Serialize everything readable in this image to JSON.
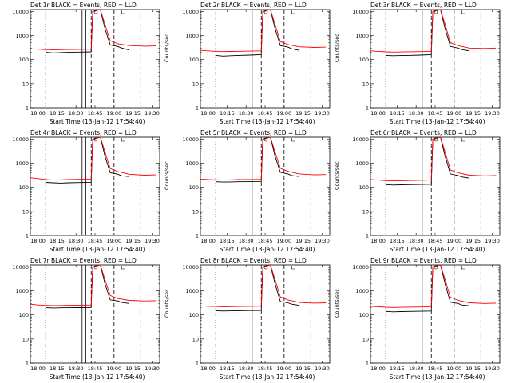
{
  "chart_data": [
    {
      "type": "line",
      "title": "Det 1r BLACK = Events, RED = LLD",
      "xlabel": "Start Time (13-Jan-12 17:54:40)",
      "ylabel": "Counts/sec",
      "x_ticks": [
        "18:00",
        "18:15",
        "18:30",
        "18:45",
        "19:00",
        "19:15",
        "19:30"
      ],
      "y_ticks": [
        "1",
        "10",
        "100",
        "1000",
        "10000"
      ],
      "ylim": [
        1,
        12000
      ],
      "xlim": [
        17.9,
        19.6
      ],
      "series": [
        {
          "name": "Events",
          "color": "#000000",
          "x": [
            18.1,
            18.2,
            18.3,
            18.4,
            18.55,
            18.7,
            18.72,
            18.82,
            18.88,
            18.95,
            19.05,
            19.1,
            19.2
          ],
          "y": [
            200,
            190,
            195,
            200,
            205,
            210,
            10000,
            12000,
            2000,
            400,
            350,
            300,
            250
          ]
        },
        {
          "name": "LLD",
          "color": "#ff0000",
          "x": [
            17.9,
            18.0,
            18.1,
            18.2,
            18.3,
            18.4,
            18.55,
            18.7,
            18.72,
            18.82,
            18.88,
            18.95,
            19.05,
            19.2,
            19.4,
            19.55
          ],
          "y": [
            280,
            270,
            260,
            255,
            258,
            262,
            265,
            270,
            10000,
            12000,
            3000,
            600,
            450,
            380,
            360,
            370
          ]
        }
      ]
    },
    {
      "type": "line",
      "title": "Det 2r BLACK = Events, RED = LLD",
      "xlabel": "Start Time (13-Jan-12 17:54:40)",
      "ylabel": "Counts/sec",
      "x_ticks": [
        "18:00",
        "18:15",
        "18:30",
        "18:45",
        "19:00",
        "19:15",
        "19:30"
      ],
      "y_ticks": [
        "1",
        "10",
        "100",
        "1000",
        "10000"
      ],
      "ylim": [
        1,
        12000
      ],
      "xlim": [
        17.9,
        19.6
      ],
      "series": [
        {
          "name": "Events",
          "color": "#000000",
          "x": [
            18.1,
            18.2,
            18.3,
            18.4,
            18.55,
            18.7,
            18.72,
            18.82,
            18.88,
            18.95,
            19.05,
            19.1,
            19.2
          ],
          "y": [
            150,
            140,
            145,
            150,
            155,
            160,
            10000,
            12000,
            2000,
            380,
            330,
            280,
            240
          ]
        },
        {
          "name": "LLD",
          "color": "#ff0000",
          "x": [
            17.9,
            18.0,
            18.1,
            18.2,
            18.3,
            18.4,
            18.55,
            18.7,
            18.72,
            18.82,
            18.88,
            18.95,
            19.05,
            19.2,
            19.4,
            19.55
          ],
          "y": [
            240,
            230,
            220,
            215,
            218,
            222,
            225,
            230,
            10000,
            12000,
            3000,
            560,
            420,
            340,
            320,
            330
          ]
        }
      ]
    },
    {
      "type": "line",
      "title": "Det 3r BLACK = Events, RED = LLD",
      "xlabel": "Start Time (13-Jan-12 17:54:40)",
      "ylabel": "Counts/sec",
      "x_ticks": [
        "18:00",
        "18:15",
        "18:30",
        "18:45",
        "19:00",
        "19:15",
        "19:30"
      ],
      "y_ticks": [
        "1",
        "10",
        "100",
        "1000",
        "10000"
      ],
      "ylim": [
        1,
        12000
      ],
      "xlim": [
        17.9,
        19.6
      ],
      "series": [
        {
          "name": "Events",
          "color": "#000000",
          "x": [
            18.1,
            18.2,
            18.3,
            18.4,
            18.55,
            18.7,
            18.72,
            18.82,
            18.88,
            18.95,
            19.05,
            19.1,
            19.2
          ],
          "y": [
            150,
            145,
            148,
            150,
            155,
            160,
            10000,
            12000,
            2000,
            350,
            300,
            260,
            230
          ]
        },
        {
          "name": "LLD",
          "color": "#ff0000",
          "x": [
            17.9,
            18.0,
            18.1,
            18.2,
            18.3,
            18.4,
            18.55,
            18.7,
            18.72,
            18.82,
            18.88,
            18.95,
            19.05,
            19.2,
            19.4,
            19.55
          ],
          "y": [
            230,
            220,
            210,
            205,
            208,
            212,
            215,
            220,
            10000,
            12000,
            3000,
            500,
            380,
            300,
            290,
            300
          ]
        }
      ]
    },
    {
      "type": "line",
      "title": "Det 4r BLACK = Events, RED = LLD",
      "xlabel": "Start Time (13-Jan-12 17:54:40)",
      "ylabel": "Counts/sec",
      "x_ticks": [
        "18:00",
        "18:15",
        "18:30",
        "18:45",
        "19:00",
        "19:15",
        "19:30"
      ],
      "y_ticks": [
        "1",
        "10",
        "100",
        "1000",
        "10000"
      ],
      "ylim": [
        1,
        12000
      ],
      "xlim": [
        17.9,
        19.6
      ],
      "series": [
        {
          "name": "Events",
          "color": "#000000",
          "x": [
            18.1,
            18.2,
            18.3,
            18.4,
            18.55,
            18.7,
            18.72,
            18.82,
            18.88,
            18.95,
            19.05,
            19.1,
            19.2
          ],
          "y": [
            160,
            155,
            150,
            155,
            158,
            162,
            10000,
            12000,
            2000,
            400,
            350,
            300,
            280
          ]
        },
        {
          "name": "LLD",
          "color": "#ff0000",
          "x": [
            17.9,
            18.0,
            18.1,
            18.2,
            18.3,
            18.4,
            18.55,
            18.7,
            18.72,
            18.82,
            18.88,
            18.95,
            19.05,
            19.2,
            19.4,
            19.55
          ],
          "y": [
            250,
            230,
            210,
            200,
            205,
            210,
            215,
            220,
            10000,
            12000,
            3000,
            600,
            450,
            350,
            320,
            330
          ]
        }
      ]
    },
    {
      "type": "line",
      "title": "Det 5r BLACK = Events, RED = LLD",
      "xlabel": "Start Time (13-Jan-12 17:54:40)",
      "ylabel": "Counts/sec",
      "x_ticks": [
        "18:00",
        "18:15",
        "18:30",
        "18:45",
        "19:00",
        "19:15",
        "19:30"
      ],
      "y_ticks": [
        "1",
        "10",
        "100",
        "1000",
        "10000"
      ],
      "ylim": [
        1,
        12000
      ],
      "xlim": [
        17.9,
        19.6
      ],
      "series": [
        {
          "name": "Events",
          "color": "#000000",
          "x": [
            18.1,
            18.2,
            18.3,
            18.4,
            18.55,
            18.7,
            18.72,
            18.82,
            18.88,
            18.95,
            19.05,
            19.1,
            19.2
          ],
          "y": [
            170,
            165,
            168,
            170,
            172,
            175,
            10000,
            12000,
            2000,
            420,
            360,
            310,
            280
          ]
        },
        {
          "name": "LLD",
          "color": "#ff0000",
          "x": [
            17.9,
            18.0,
            18.1,
            18.2,
            18.3,
            18.4,
            18.55,
            18.7,
            18.72,
            18.82,
            18.88,
            18.95,
            19.05,
            19.2,
            19.4,
            19.55
          ],
          "y": [
            220,
            210,
            205,
            200,
            205,
            210,
            212,
            215,
            10000,
            12000,
            3000,
            620,
            460,
            360,
            330,
            340
          ]
        }
      ]
    },
    {
      "type": "line",
      "title": "Det 6r BLACK = Events, RED = LLD",
      "xlabel": "Start Time (13-Jan-12 17:54:40)",
      "ylabel": "Counts/sec",
      "x_ticks": [
        "18:00",
        "18:15",
        "18:30",
        "18:45",
        "19:00",
        "19:15",
        "19:30"
      ],
      "y_ticks": [
        "1",
        "10",
        "100",
        "1000",
        "10000"
      ],
      "ylim": [
        1,
        12000
      ],
      "xlim": [
        17.9,
        19.6
      ],
      "series": [
        {
          "name": "Events",
          "color": "#000000",
          "x": [
            18.1,
            18.2,
            18.3,
            18.4,
            18.55,
            18.7,
            18.72,
            18.82,
            18.88,
            18.95,
            19.05,
            19.1,
            19.2
          ],
          "y": [
            130,
            125,
            128,
            130,
            132,
            135,
            10000,
            12000,
            2000,
            360,
            310,
            270,
            240
          ]
        },
        {
          "name": "LLD",
          "color": "#ff0000",
          "x": [
            17.9,
            18.0,
            18.1,
            18.2,
            18.3,
            18.4,
            18.55,
            18.7,
            18.72,
            18.82,
            18.88,
            18.95,
            19.05,
            19.2,
            19.4,
            19.55
          ],
          "y": [
            210,
            200,
            190,
            185,
            188,
            192,
            195,
            200,
            10000,
            12000,
            3000,
            520,
            400,
            320,
            300,
            310
          ]
        }
      ]
    },
    {
      "type": "line",
      "title": "Det 7r BLACK = Events, RED = LLD",
      "xlabel": "Start Time (13-Jan-12 17:54:40)",
      "ylabel": "Counts/sec",
      "x_ticks": [
        "18:00",
        "18:15",
        "18:30",
        "18:45",
        "19:00",
        "19:15",
        "19:30"
      ],
      "y_ticks": [
        "1",
        "10",
        "100",
        "1000",
        "10000"
      ],
      "ylim": [
        1,
        12000
      ],
      "xlim": [
        17.9,
        19.6
      ],
      "series": [
        {
          "name": "Events",
          "color": "#000000",
          "x": [
            18.1,
            18.2,
            18.3,
            18.4,
            18.55,
            18.7,
            18.72,
            18.82,
            18.88,
            18.95,
            19.05,
            19.1,
            19.2
          ],
          "y": [
            200,
            195,
            198,
            200,
            202,
            205,
            10000,
            12000,
            2000,
            420,
            380,
            330,
            300
          ]
        },
        {
          "name": "LLD",
          "color": "#ff0000",
          "x": [
            17.9,
            18.0,
            18.1,
            18.2,
            18.3,
            18.4,
            18.55,
            18.7,
            18.72,
            18.82,
            18.88,
            18.95,
            19.05,
            19.2,
            19.4,
            19.55
          ],
          "y": [
            280,
            260,
            250,
            245,
            248,
            252,
            255,
            260,
            10000,
            12000,
            3000,
            640,
            480,
            400,
            380,
            390
          ]
        }
      ]
    },
    {
      "type": "line",
      "title": "Det 8r BLACK = Events, RED = LLD",
      "xlabel": "Start Time (13-Jan-12 17:54:40)",
      "ylabel": "Counts/sec",
      "x_ticks": [
        "18:00",
        "18:15",
        "18:30",
        "18:45",
        "19:00",
        "19:15",
        "19:30"
      ],
      "y_ticks": [
        "1",
        "10",
        "100",
        "1000",
        "10000"
      ],
      "ylim": [
        1,
        12000
      ],
      "xlim": [
        17.9,
        19.6
      ],
      "series": [
        {
          "name": "Events",
          "color": "#000000",
          "x": [
            18.1,
            18.2,
            18.3,
            18.4,
            18.55,
            18.7,
            18.72,
            18.82,
            18.88,
            18.95,
            19.05,
            19.1,
            19.2
          ],
          "y": [
            150,
            145,
            148,
            150,
            152,
            155,
            10000,
            12000,
            2000,
            360,
            320,
            280,
            250
          ]
        },
        {
          "name": "LLD",
          "color": "#ff0000",
          "x": [
            17.9,
            18.0,
            18.1,
            18.2,
            18.3,
            18.4,
            18.55,
            18.7,
            18.72,
            18.82,
            18.88,
            18.95,
            19.05,
            19.2,
            19.4,
            19.55
          ],
          "y": [
            240,
            230,
            225,
            220,
            222,
            226,
            228,
            232,
            10000,
            12000,
            3000,
            560,
            420,
            330,
            310,
            320
          ]
        }
      ]
    },
    {
      "type": "line",
      "title": "Det 9r BLACK = Events, RED = LLD",
      "xlabel": "Start Time (13-Jan-12 17:54:40)",
      "ylabel": "Counts/sec",
      "x_ticks": [
        "18:00",
        "18:15",
        "18:30",
        "18:45",
        "19:00",
        "19:15",
        "19:30"
      ],
      "y_ticks": [
        "1",
        "10",
        "100",
        "1000",
        "10000"
      ],
      "ylim": [
        1,
        12000
      ],
      "xlim": [
        17.9,
        19.6
      ],
      "series": [
        {
          "name": "Events",
          "color": "#000000",
          "x": [
            18.1,
            18.2,
            18.3,
            18.4,
            18.55,
            18.7,
            18.72,
            18.82,
            18.88,
            18.95,
            19.05,
            19.1,
            19.2
          ],
          "y": [
            140,
            135,
            138,
            140,
            142,
            145,
            10000,
            12000,
            2000,
            340,
            300,
            260,
            240
          ]
        },
        {
          "name": "LLD",
          "color": "#ff0000",
          "x": [
            17.9,
            18.0,
            18.1,
            18.2,
            18.3,
            18.4,
            18.55,
            18.7,
            18.72,
            18.82,
            18.88,
            18.95,
            19.05,
            19.2,
            19.4,
            19.55
          ],
          "y": [
            230,
            220,
            210,
            205,
            208,
            212,
            215,
            220,
            10000,
            12000,
            3000,
            540,
            400,
            320,
            300,
            310
          ]
        }
      ]
    }
  ]
}
